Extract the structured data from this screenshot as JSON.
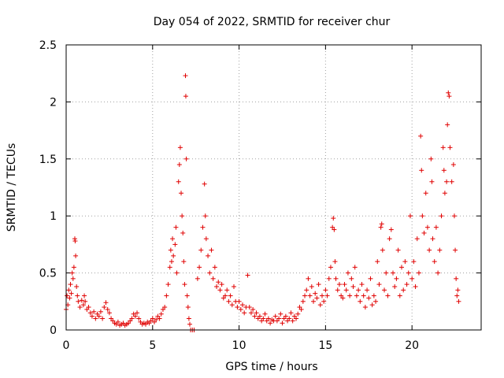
{
  "chart_data": {
    "type": "scatter",
    "title": "Day 054 of 2022, SRMTID for receiver chur",
    "xlabel": "GPS time / hours",
    "ylabel": "SRMTID / TECUs",
    "xlim": [
      0,
      24
    ],
    "ylim": [
      0,
      2.5
    ],
    "xticks": [
      0,
      5,
      10,
      15,
      20
    ],
    "yticks": [
      0,
      0.5,
      1,
      1.5,
      2,
      2.5
    ],
    "xtick_labels": [
      "0",
      "5",
      "10",
      "15",
      "20"
    ],
    "ytick_labels": [
      "0",
      "0.5",
      "1",
      "1.5",
      "2",
      "2.5"
    ],
    "grid": true,
    "marker": "+",
    "color": "#e00000",
    "series": [
      {
        "name": "SRMTID",
        "points": [
          [
            0.0,
            0.18
          ],
          [
            0.05,
            0.3
          ],
          [
            0.1,
            0.22
          ],
          [
            0.15,
            0.35
          ],
          [
            0.2,
            0.28
          ],
          [
            0.25,
            0.4
          ],
          [
            0.3,
            0.32
          ],
          [
            0.35,
            0.5
          ],
          [
            0.4,
            0.45
          ],
          [
            0.45,
            0.55
          ],
          [
            0.5,
            0.8
          ],
          [
            0.52,
            0.78
          ],
          [
            0.55,
            0.65
          ],
          [
            0.6,
            0.38
          ],
          [
            0.65,
            0.3
          ],
          [
            0.7,
            0.25
          ],
          [
            0.8,
            0.2
          ],
          [
            0.9,
            0.26
          ],
          [
            1.0,
            0.22
          ],
          [
            1.05,
            0.3
          ],
          [
            1.1,
            0.25
          ],
          [
            1.2,
            0.18
          ],
          [
            1.3,
            0.2
          ],
          [
            1.4,
            0.15
          ],
          [
            1.5,
            0.12
          ],
          [
            1.6,
            0.16
          ],
          [
            1.7,
            0.1
          ],
          [
            1.8,
            0.14
          ],
          [
            1.9,
            0.12
          ],
          [
            2.0,
            0.16
          ],
          [
            2.1,
            0.1
          ],
          [
            2.2,
            0.2
          ],
          [
            2.3,
            0.24
          ],
          [
            2.4,
            0.18
          ],
          [
            2.5,
            0.15
          ],
          [
            2.6,
            0.1
          ],
          [
            2.7,
            0.08
          ],
          [
            2.8,
            0.06
          ],
          [
            2.9,
            0.05
          ],
          [
            3.0,
            0.07
          ],
          [
            3.1,
            0.04
          ],
          [
            3.2,
            0.05
          ],
          [
            3.3,
            0.06
          ],
          [
            3.4,
            0.04
          ],
          [
            3.5,
            0.05
          ],
          [
            3.6,
            0.06
          ],
          [
            3.7,
            0.08
          ],
          [
            3.8,
            0.1
          ],
          [
            3.9,
            0.14
          ],
          [
            4.0,
            0.12
          ],
          [
            4.1,
            0.15
          ],
          [
            4.2,
            0.1
          ],
          [
            4.3,
            0.07
          ],
          [
            4.4,
            0.05
          ],
          [
            4.5,
            0.06
          ],
          [
            4.6,
            0.05
          ],
          [
            4.7,
            0.07
          ],
          [
            4.8,
            0.06
          ],
          [
            4.9,
            0.08
          ],
          [
            5.0,
            0.1
          ],
          [
            5.1,
            0.07
          ],
          [
            5.2,
            0.09
          ],
          [
            5.3,
            0.12
          ],
          [
            5.4,
            0.1
          ],
          [
            5.5,
            0.14
          ],
          [
            5.6,
            0.18
          ],
          [
            5.7,
            0.2
          ],
          [
            5.8,
            0.3
          ],
          [
            5.9,
            0.4
          ],
          [
            6.0,
            0.55
          ],
          [
            6.05,
            0.7
          ],
          [
            6.1,
            0.6
          ],
          [
            6.15,
            0.8
          ],
          [
            6.2,
            0.65
          ],
          [
            6.3,
            0.75
          ],
          [
            6.35,
            0.9
          ],
          [
            6.4,
            0.5
          ],
          [
            6.5,
            1.3
          ],
          [
            6.55,
            1.45
          ],
          [
            6.6,
            1.6
          ],
          [
            6.65,
            1.2
          ],
          [
            6.7,
            1.0
          ],
          [
            6.75,
            0.85
          ],
          [
            6.8,
            0.6
          ],
          [
            6.85,
            0.4
          ],
          [
            6.9,
            2.23
          ],
          [
            6.92,
            2.05
          ],
          [
            6.95,
            1.5
          ],
          [
            7.0,
            0.3
          ],
          [
            7.05,
            0.2
          ],
          [
            7.1,
            0.1
          ],
          [
            7.15,
            0.05
          ],
          [
            7.2,
            0.0
          ],
          [
            7.3,
            0.0
          ],
          [
            7.4,
            0.0
          ],
          [
            7.6,
            0.45
          ],
          [
            7.7,
            0.55
          ],
          [
            7.8,
            0.7
          ],
          [
            7.9,
            0.9
          ],
          [
            8.0,
            1.28
          ],
          [
            8.05,
            1.0
          ],
          [
            8.1,
            0.8
          ],
          [
            8.2,
            0.65
          ],
          [
            8.3,
            0.5
          ],
          [
            8.4,
            0.7
          ],
          [
            8.5,
            0.45
          ],
          [
            8.6,
            0.55
          ],
          [
            8.7,
            0.38
          ],
          [
            8.8,
            0.42
          ],
          [
            8.9,
            0.35
          ],
          [
            9.0,
            0.4
          ],
          [
            9.1,
            0.28
          ],
          [
            9.2,
            0.3
          ],
          [
            9.3,
            0.35
          ],
          [
            9.4,
            0.25
          ],
          [
            9.5,
            0.3
          ],
          [
            9.6,
            0.22
          ],
          [
            9.7,
            0.38
          ],
          [
            9.8,
            0.25
          ],
          [
            9.9,
            0.2
          ],
          [
            10.0,
            0.25
          ],
          [
            10.1,
            0.18
          ],
          [
            10.2,
            0.22
          ],
          [
            10.3,
            0.15
          ],
          [
            10.4,
            0.2
          ],
          [
            10.5,
            0.48
          ],
          [
            10.6,
            0.2
          ],
          [
            10.7,
            0.15
          ],
          [
            10.8,
            0.18
          ],
          [
            10.9,
            0.12
          ],
          [
            11.0,
            0.15
          ],
          [
            11.1,
            0.1
          ],
          [
            11.2,
            0.12
          ],
          [
            11.3,
            0.08
          ],
          [
            11.4,
            0.1
          ],
          [
            11.5,
            0.14
          ],
          [
            11.6,
            0.08
          ],
          [
            11.7,
            0.1
          ],
          [
            11.8,
            0.06
          ],
          [
            11.9,
            0.09
          ],
          [
            12.0,
            0.08
          ],
          [
            12.1,
            0.12
          ],
          [
            12.2,
            0.08
          ],
          [
            12.3,
            0.1
          ],
          [
            12.4,
            0.14
          ],
          [
            12.5,
            0.06
          ],
          [
            12.6,
            0.1
          ],
          [
            12.7,
            0.12
          ],
          [
            12.8,
            0.08
          ],
          [
            12.9,
            0.1
          ],
          [
            13.0,
            0.15
          ],
          [
            13.1,
            0.08
          ],
          [
            13.2,
            0.12
          ],
          [
            13.3,
            0.1
          ],
          [
            13.4,
            0.14
          ],
          [
            13.5,
            0.2
          ],
          [
            13.6,
            0.18
          ],
          [
            13.7,
            0.25
          ],
          [
            13.8,
            0.3
          ],
          [
            13.9,
            0.35
          ],
          [
            14.0,
            0.45
          ],
          [
            14.1,
            0.3
          ],
          [
            14.2,
            0.38
          ],
          [
            14.3,
            0.25
          ],
          [
            14.4,
            0.32
          ],
          [
            14.5,
            0.28
          ],
          [
            14.6,
            0.4
          ],
          [
            14.7,
            0.22
          ],
          [
            14.8,
            0.3
          ],
          [
            14.9,
            0.25
          ],
          [
            15.0,
            0.35
          ],
          [
            15.1,
            0.3
          ],
          [
            15.2,
            0.45
          ],
          [
            15.3,
            0.55
          ],
          [
            15.4,
            0.9
          ],
          [
            15.45,
            0.98
          ],
          [
            15.5,
            0.88
          ],
          [
            15.55,
            0.6
          ],
          [
            15.6,
            0.45
          ],
          [
            15.7,
            0.35
          ],
          [
            15.8,
            0.4
          ],
          [
            15.9,
            0.3
          ],
          [
            16.0,
            0.28
          ],
          [
            16.1,
            0.4
          ],
          [
            16.2,
            0.35
          ],
          [
            16.3,
            0.5
          ],
          [
            16.4,
            0.3
          ],
          [
            16.5,
            0.45
          ],
          [
            16.6,
            0.38
          ],
          [
            16.7,
            0.55
          ],
          [
            16.8,
            0.3
          ],
          [
            16.9,
            0.35
          ],
          [
            17.0,
            0.25
          ],
          [
            17.1,
            0.4
          ],
          [
            17.2,
            0.3
          ],
          [
            17.3,
            0.2
          ],
          [
            17.4,
            0.35
          ],
          [
            17.5,
            0.28
          ],
          [
            17.6,
            0.45
          ],
          [
            17.7,
            0.22
          ],
          [
            17.8,
            0.3
          ],
          [
            17.9,
            0.25
          ],
          [
            18.0,
            0.6
          ],
          [
            18.1,
            0.4
          ],
          [
            18.2,
            0.9
          ],
          [
            18.25,
            0.93
          ],
          [
            18.3,
            0.7
          ],
          [
            18.4,
            0.35
          ],
          [
            18.5,
            0.5
          ],
          [
            18.6,
            0.3
          ],
          [
            18.7,
            0.8
          ],
          [
            18.8,
            0.88
          ],
          [
            18.9,
            0.5
          ],
          [
            19.0,
            0.38
          ],
          [
            19.1,
            0.45
          ],
          [
            19.2,
            0.7
          ],
          [
            19.3,
            0.3
          ],
          [
            19.4,
            0.55
          ],
          [
            19.5,
            0.35
          ],
          [
            19.6,
            0.6
          ],
          [
            19.7,
            0.4
          ],
          [
            19.8,
            0.5
          ],
          [
            19.9,
            1.0
          ],
          [
            20.0,
            0.45
          ],
          [
            20.1,
            0.6
          ],
          [
            20.2,
            0.38
          ],
          [
            20.3,
            0.8
          ],
          [
            20.4,
            0.5
          ],
          [
            20.5,
            1.7
          ],
          [
            20.55,
            1.4
          ],
          [
            20.6,
            1.0
          ],
          [
            20.7,
            0.85
          ],
          [
            20.8,
            1.2
          ],
          [
            20.9,
            0.9
          ],
          [
            21.0,
            0.7
          ],
          [
            21.1,
            1.5
          ],
          [
            21.15,
            1.3
          ],
          [
            21.2,
            0.8
          ],
          [
            21.3,
            0.6
          ],
          [
            21.4,
            0.9
          ],
          [
            21.5,
            0.5
          ],
          [
            21.6,
            0.7
          ],
          [
            21.7,
            1.0
          ],
          [
            21.8,
            1.6
          ],
          [
            21.85,
            1.4
          ],
          [
            21.9,
            1.2
          ],
          [
            22.0,
            1.3
          ],
          [
            22.05,
            1.8
          ],
          [
            22.1,
            2.08
          ],
          [
            22.15,
            2.05
          ],
          [
            22.2,
            1.6
          ],
          [
            22.3,
            1.3
          ],
          [
            22.4,
            1.45
          ],
          [
            22.45,
            1.0
          ],
          [
            22.5,
            0.7
          ],
          [
            22.55,
            0.45
          ],
          [
            22.6,
            0.3
          ],
          [
            22.65,
            0.35
          ],
          [
            22.7,
            0.25
          ]
        ]
      }
    ]
  }
}
